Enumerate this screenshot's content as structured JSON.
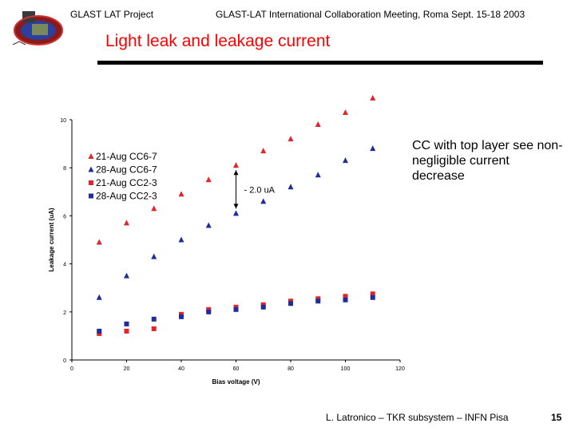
{
  "header": {
    "project": "GLAST LAT Project",
    "meeting": "GLAST-LAT International Collaboration Meeting, Roma Sept. 15-18 2003"
  },
  "slide_title": "Light leak and leakage current",
  "annotation": "CC with top layer see non-negligible current decrease",
  "footer": {
    "author": "L. Latronico – TKR subsystem – INFN Pisa",
    "page": "15"
  },
  "icons": {
    "logo": "glast-mission-logo"
  },
  "colors": {
    "title": "#ff0000",
    "red_series": "#e0262b",
    "blue_series": "#1f2d9c"
  },
  "chart_data": {
    "type": "scatter",
    "title": "",
    "xlabel": "Bias voltage (V)",
    "ylabel": "Leakage current (uA)",
    "xlim": [
      0,
      120
    ],
    "ylim": [
      0,
      10
    ],
    "xticks": [
      "0",
      "20",
      "40",
      "60",
      "80",
      "100",
      "120"
    ],
    "yticks": [
      "0",
      "2",
      "4",
      "6",
      "8",
      "10"
    ],
    "grid": false,
    "legend_position": "top-left",
    "annotation": "- 2.0 uA",
    "series": [
      {
        "name": "21-Aug CC6-7",
        "marker": "triangle",
        "color": "#e0262b",
        "x": [
          10,
          20,
          30,
          40,
          50,
          60,
          70,
          80,
          90,
          100,
          110
        ],
        "y": [
          4.9,
          5.7,
          6.3,
          6.9,
          7.5,
          8.1,
          8.7,
          9.2,
          9.8,
          10.3,
          10.9
        ]
      },
      {
        "name": "28-Aug CC6-7",
        "marker": "triangle",
        "color": "#1f2d9c",
        "x": [
          10,
          20,
          30,
          40,
          50,
          60,
          70,
          80,
          90,
          100,
          110
        ],
        "y": [
          2.6,
          3.5,
          4.3,
          5.0,
          5.6,
          6.1,
          6.6,
          7.2,
          7.7,
          8.3,
          8.8
        ]
      },
      {
        "name": "21-Aug CC2-3",
        "marker": "square",
        "color": "#e0262b",
        "x": [
          10,
          20,
          30,
          40,
          50,
          60,
          70,
          80,
          90,
          100,
          110
        ],
        "y": [
          1.1,
          1.2,
          1.3,
          1.9,
          2.1,
          2.2,
          2.3,
          2.45,
          2.55,
          2.65,
          2.75
        ]
      },
      {
        "name": "28-Aug CC2-3",
        "marker": "square",
        "color": "#1f2d9c",
        "x": [
          10,
          20,
          30,
          40,
          50,
          60,
          70,
          80,
          90,
          100,
          110
        ],
        "y": [
          1.2,
          1.5,
          1.7,
          1.8,
          2.0,
          2.1,
          2.2,
          2.35,
          2.45,
          2.5,
          2.6
        ]
      }
    ]
  }
}
